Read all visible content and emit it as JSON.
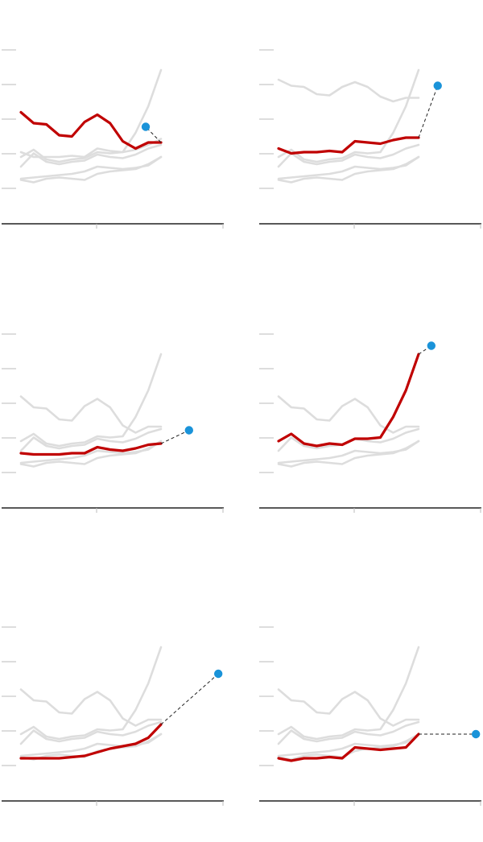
{
  "colors": {
    "highlight": "#c00000",
    "background_series": "#dddddd",
    "endpoint_dot": "#1a93d9",
    "axis": "#222222",
    "tick": "#bbbbbb",
    "connector": "#222222"
  },
  "chart_data": [
    {
      "type": "line",
      "xlim": [
        0,
        11
      ],
      "ylim": [
        0,
        100
      ],
      "grid": false,
      "legend": "none",
      "highlight_index": 0,
      "endpoint": {
        "x": 9.8,
        "y": 53
      },
      "series": [
        {
          "x": [
            0,
            1,
            2,
            3,
            4,
            5,
            6,
            7,
            8,
            9,
            10,
            11
          ],
          "values": [
            65,
            56,
            55,
            46,
            45,
            57,
            63,
            56,
            41,
            35,
            40,
            40
          ]
        },
        {
          "x": [
            0,
            1,
            2,
            3,
            4,
            5,
            6,
            7,
            8,
            9,
            10,
            11
          ],
          "values": [
            32,
            28,
            28,
            28,
            29,
            28,
            35,
            33,
            32,
            34,
            38,
            43
          ]
        },
        {
          "x": [
            0,
            1,
            2,
            3,
            4,
            5,
            6,
            7,
            8,
            9,
            10,
            11
          ],
          "values": [
            28,
            34,
            26,
            24,
            26,
            27,
            32,
            31,
            32,
            48,
            70,
            100
          ]
        },
        {
          "x": [
            0,
            1,
            2,
            3,
            4,
            5,
            6,
            7,
            8,
            9,
            10,
            11
          ],
          "values": [
            20,
            31,
            24,
            22,
            24,
            25,
            30,
            28,
            27,
            30,
            35,
            38
          ]
        },
        {
          "x": [
            0,
            1,
            2,
            3,
            4,
            5,
            6,
            7,
            8,
            9,
            10,
            11
          ],
          "values": [
            10,
            11,
            12,
            13,
            14,
            16,
            20,
            19,
            18,
            19,
            21,
            28
          ]
        },
        {
          "x": [
            0,
            1,
            2,
            3,
            4,
            5,
            6,
            7,
            8,
            9,
            10,
            11
          ],
          "values": [
            9,
            7,
            10,
            11,
            10,
            9,
            14,
            16,
            17,
            18,
            22,
            28
          ]
        }
      ]
    },
    {
      "type": "line",
      "xlim": [
        0,
        11
      ],
      "ylim": [
        0,
        100
      ],
      "grid": false,
      "legend": "none",
      "highlight_index": 0,
      "endpoint": {
        "x": 12.5,
        "y": 87
      },
      "series": [
        {
          "x": [
            0,
            1,
            2,
            3,
            4,
            5,
            6,
            7,
            8,
            9,
            10,
            11
          ],
          "values": [
            35,
            31,
            32,
            32,
            33,
            32,
            41,
            40,
            39,
            42,
            44,
            44
          ]
        },
        {
          "x": [
            0,
            1,
            2,
            3,
            4,
            5,
            6,
            7,
            8,
            9,
            10,
            11
          ],
          "values": [
            92,
            87,
            86,
            80,
            79,
            86,
            90,
            86,
            78,
            74,
            77,
            77
          ]
        },
        {
          "x": [
            0,
            1,
            2,
            3,
            4,
            5,
            6,
            7,
            8,
            9,
            10,
            11
          ],
          "values": [
            28,
            34,
            26,
            24,
            26,
            27,
            32,
            31,
            32,
            48,
            70,
            100
          ]
        },
        {
          "x": [
            0,
            1,
            2,
            3,
            4,
            5,
            6,
            7,
            8,
            9,
            10,
            11
          ],
          "values": [
            20,
            31,
            24,
            22,
            24,
            25,
            30,
            28,
            27,
            30,
            35,
            38
          ]
        },
        {
          "x": [
            0,
            1,
            2,
            3,
            4,
            5,
            6,
            7,
            8,
            9,
            10,
            11
          ],
          "values": [
            10,
            11,
            12,
            13,
            14,
            16,
            20,
            19,
            18,
            19,
            21,
            28
          ]
        },
        {
          "x": [
            0,
            1,
            2,
            3,
            4,
            5,
            6,
            7,
            8,
            9,
            10,
            11
          ],
          "values": [
            9,
            7,
            10,
            11,
            10,
            9,
            14,
            16,
            17,
            18,
            22,
            28
          ]
        }
      ]
    },
    {
      "type": "line",
      "xlim": [
        0,
        11
      ],
      "ylim": [
        0,
        100
      ],
      "grid": false,
      "legend": "none",
      "highlight_index": 0,
      "endpoint": {
        "x": 13.2,
        "y": 37
      },
      "series": [
        {
          "x": [
            0,
            1,
            2,
            3,
            4,
            5,
            6,
            7,
            8,
            9,
            10,
            11
          ],
          "values": [
            18,
            17,
            17,
            17,
            18,
            18,
            23,
            21,
            20,
            22,
            25,
            26
          ]
        },
        {
          "x": [
            0,
            1,
            2,
            3,
            4,
            5,
            6,
            7,
            8,
            9,
            10,
            11
          ],
          "values": [
            65,
            56,
            55,
            46,
            45,
            57,
            63,
            56,
            41,
            35,
            40,
            40
          ]
        },
        {
          "x": [
            0,
            1,
            2,
            3,
            4,
            5,
            6,
            7,
            8,
            9,
            10,
            11
          ],
          "values": [
            28,
            34,
            26,
            24,
            26,
            27,
            32,
            31,
            32,
            48,
            70,
            100
          ]
        },
        {
          "x": [
            0,
            1,
            2,
            3,
            4,
            5,
            6,
            7,
            8,
            9,
            10,
            11
          ],
          "values": [
            20,
            31,
            24,
            22,
            24,
            25,
            30,
            28,
            27,
            30,
            35,
            38
          ]
        },
        {
          "x": [
            0,
            1,
            2,
            3,
            4,
            5,
            6,
            7,
            8,
            9,
            10,
            11
          ],
          "values": [
            10,
            11,
            12,
            13,
            14,
            16,
            20,
            19,
            18,
            19,
            21,
            28
          ]
        },
        {
          "x": [
            0,
            1,
            2,
            3,
            4,
            5,
            6,
            7,
            8,
            9,
            10,
            11
          ],
          "values": [
            9,
            7,
            10,
            11,
            10,
            9,
            14,
            16,
            17,
            18,
            22,
            28
          ]
        }
      ]
    },
    {
      "type": "line",
      "xlim": [
        0,
        11
      ],
      "ylim": [
        0,
        100
      ],
      "grid": false,
      "legend": "none",
      "highlight_index": 0,
      "endpoint": {
        "x": 12,
        "y": 107
      },
      "series": [
        {
          "x": [
            0,
            1,
            2,
            3,
            4,
            5,
            6,
            7,
            8,
            9,
            10,
            11
          ],
          "values": [
            28,
            34,
            26,
            24,
            26,
            25,
            30,
            30,
            31,
            48,
            70,
            100
          ]
        },
        {
          "x": [
            0,
            1,
            2,
            3,
            4,
            5,
            6,
            7,
            8,
            9,
            10,
            11
          ],
          "values": [
            65,
            56,
            55,
            46,
            45,
            57,
            63,
            56,
            41,
            35,
            40,
            40
          ]
        },
        {
          "x": [
            0,
            1,
            2,
            3,
            4,
            5,
            6,
            7,
            8,
            9,
            10,
            11
          ],
          "values": [
            20,
            31,
            24,
            22,
            24,
            25,
            30,
            28,
            27,
            30,
            35,
            38
          ]
        },
        {
          "x": [
            0,
            1,
            2,
            3,
            4,
            5,
            6,
            7,
            8,
            9,
            10,
            11
          ],
          "values": [
            10,
            11,
            12,
            13,
            14,
            16,
            20,
            19,
            18,
            19,
            21,
            28
          ]
        },
        {
          "x": [
            0,
            1,
            2,
            3,
            4,
            5,
            6,
            7,
            8,
            9,
            10,
            11
          ],
          "values": [
            9,
            7,
            10,
            11,
            10,
            9,
            14,
            16,
            17,
            18,
            22,
            28
          ]
        }
      ]
    },
    {
      "type": "line",
      "xlim": [
        0,
        11
      ],
      "ylim": [
        0,
        100
      ],
      "grid": false,
      "legend": "none",
      "highlight_index": 0,
      "endpoint": {
        "x": 15.5,
        "y": 78
      },
      "series": [
        {
          "x": [
            0,
            1,
            2,
            3,
            4,
            5,
            6,
            7,
            8,
            9,
            10,
            11
          ],
          "values": [
            8,
            8,
            8,
            8,
            9,
            10,
            13,
            16,
            18,
            20,
            25,
            36
          ]
        },
        {
          "x": [
            0,
            1,
            2,
            3,
            4,
            5,
            6,
            7,
            8,
            9,
            10,
            11
          ],
          "values": [
            65,
            56,
            55,
            46,
            45,
            57,
            63,
            56,
            41,
            35,
            40,
            40
          ]
        },
        {
          "x": [
            0,
            1,
            2,
            3,
            4,
            5,
            6,
            7,
            8,
            9,
            10,
            11
          ],
          "values": [
            28,
            34,
            26,
            24,
            26,
            27,
            32,
            31,
            32,
            48,
            70,
            100
          ]
        },
        {
          "x": [
            0,
            1,
            2,
            3,
            4,
            5,
            6,
            7,
            8,
            9,
            10,
            11
          ],
          "values": [
            20,
            31,
            24,
            22,
            24,
            25,
            30,
            28,
            27,
            30,
            35,
            38
          ]
        },
        {
          "x": [
            0,
            1,
            2,
            3,
            4,
            5,
            6,
            7,
            8,
            9,
            10,
            11
          ],
          "values": [
            10,
            11,
            12,
            13,
            14,
            16,
            20,
            19,
            18,
            19,
            21,
            28
          ]
        },
        {
          "x": [
            0,
            1,
            2,
            3,
            4,
            5,
            6,
            7,
            8,
            9,
            10,
            11
          ],
          "values": [
            9,
            7,
            10,
            11,
            10,
            9,
            14,
            16,
            17,
            18,
            22,
            28
          ]
        }
      ]
    },
    {
      "type": "line",
      "xlim": [
        0,
        11
      ],
      "ylim": [
        0,
        100
      ],
      "grid": false,
      "legend": "none",
      "highlight_index": 0,
      "endpoint": {
        "x": 15.5,
        "y": 28
      },
      "series": [
        {
          "x": [
            0,
            1,
            2,
            3,
            4,
            5,
            6,
            7,
            8,
            9,
            10,
            11
          ],
          "values": [
            8,
            6,
            8,
            8,
            9,
            8,
            17,
            16,
            15,
            16,
            17,
            28
          ]
        },
        {
          "x": [
            0,
            1,
            2,
            3,
            4,
            5,
            6,
            7,
            8,
            9,
            10,
            11
          ],
          "values": [
            65,
            56,
            55,
            46,
            45,
            57,
            63,
            56,
            41,
            35,
            40,
            40
          ]
        },
        {
          "x": [
            0,
            1,
            2,
            3,
            4,
            5,
            6,
            7,
            8,
            9,
            10,
            11
          ],
          "values": [
            28,
            34,
            26,
            24,
            26,
            27,
            32,
            31,
            32,
            48,
            70,
            100
          ]
        },
        {
          "x": [
            0,
            1,
            2,
            3,
            4,
            5,
            6,
            7,
            8,
            9,
            10,
            11
          ],
          "values": [
            20,
            31,
            24,
            22,
            24,
            25,
            30,
            28,
            27,
            30,
            35,
            38
          ]
        },
        {
          "x": [
            0,
            1,
            2,
            3,
            4,
            5,
            6,
            7,
            8,
            9,
            10,
            11
          ],
          "values": [
            10,
            11,
            12,
            13,
            14,
            16,
            20,
            19,
            18,
            19,
            21,
            28
          ]
        },
        {
          "x": [
            0,
            1,
            2,
            3,
            4,
            5,
            6,
            7,
            8,
            9,
            10,
            11
          ],
          "values": [
            9,
            7,
            10,
            11,
            10,
            9,
            14,
            16,
            17,
            18,
            22,
            28
          ]
        }
      ]
    }
  ]
}
